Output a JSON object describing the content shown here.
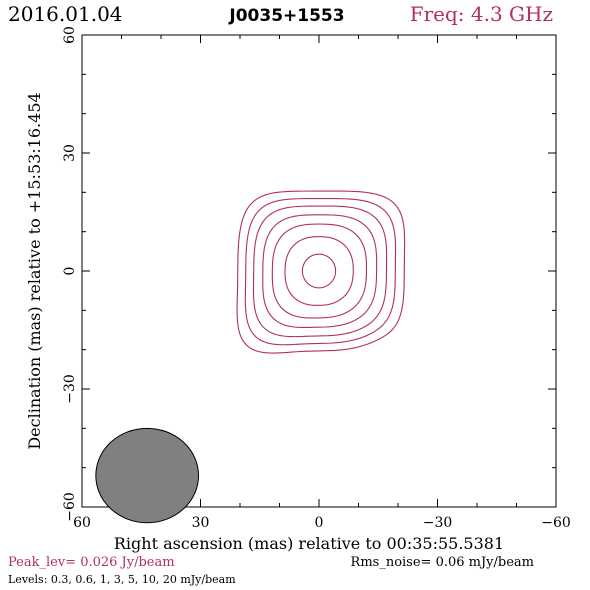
{
  "header": {
    "date": "2016.01.04",
    "source": "J0035+1553",
    "freq": "Freq: 4.3 GHz"
  },
  "footer": {
    "peak": "Peak_lev=  0.026 Jy/beam",
    "rms": "Rms_noise= 0.06 mJy/beam",
    "levels": "Levels: 0.3, 0.6,   1,   3,   5,  10,  20 mJy/beam"
  },
  "colors": {
    "contour": "#b03060",
    "beam_fill": "#808080",
    "axes": "#000000"
  },
  "chart_data": {
    "type": "contour",
    "xlabel": "Right ascension (mas) relative to 00:35:55.5381",
    "ylabel": "Declination (mas) relative to +15:53:16.454",
    "xlim": [
      60,
      -60
    ],
    "ylim": [
      -60,
      60
    ],
    "x_ticks": [
      60,
      30,
      0,
      -30,
      -60
    ],
    "y_ticks": [
      -60,
      -30,
      0,
      30,
      60
    ],
    "x_tick_labels": [
      "60",
      "30",
      "0",
      "−30",
      "−60"
    ],
    "y_tick_labels": [
      "−60",
      "−30",
      "0",
      "30",
      "60"
    ],
    "contour_levels_mJy": [
      0.3,
      0.6,
      1,
      3,
      5,
      10,
      20
    ],
    "contour_half_widths_mas": [
      20.5,
      18.5,
      16.5,
      14.2,
      11.8,
      8.6,
      4.2
    ],
    "source_center_mas": [
      0,
      0
    ],
    "beam": {
      "center_mas": [
        43.5,
        -52
      ],
      "major_mas": 13,
      "minor_mas": 12,
      "pa_deg": 0
    }
  }
}
